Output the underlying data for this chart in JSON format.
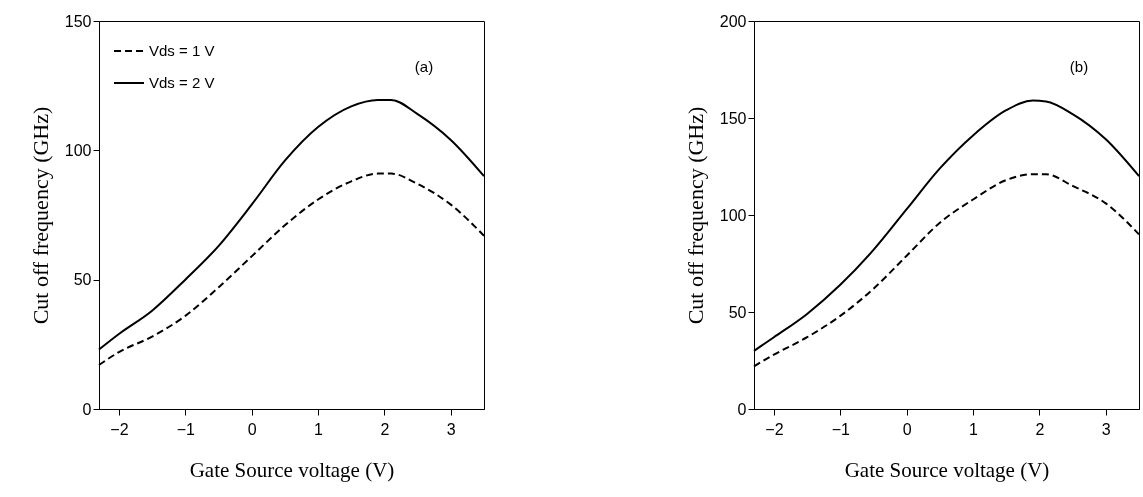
{
  "chart_data": [
    {
      "type": "line",
      "xlabel": "Gate Source voltage (V)",
      "ylabel": "Cut off frequency (GHz)",
      "annotations": [
        "(a)"
      ],
      "xlim": [
        -2.3,
        3.5
      ],
      "xticks": [
        -2,
        -1,
        0,
        1,
        2,
        3
      ],
      "ylim": [
        0,
        150
      ],
      "yticks": [
        0,
        50,
        100,
        150
      ],
      "grid": false,
      "legend": "top left",
      "marker": "none",
      "x": [
        -2.3,
        -2,
        -1.5,
        -1,
        -0.5,
        0,
        0.5,
        1,
        1.5,
        1.9,
        2.1,
        2.5,
        3,
        3.5
      ],
      "series": [
        {
          "name": "Vds = 1 V",
          "color": "#000000",
          "line_style": "dashed",
          "values": [
            17,
            22,
            28,
            36,
            47,
            59,
            71,
            81,
            88,
            91,
            91,
            87,
            79,
            67
          ]
        },
        {
          "name": "Vds = 2 V",
          "color": "#000000",
          "line_style": "solid",
          "values": [
            23,
            29,
            38,
            50,
            63,
            79,
            96,
            109,
            117,
            119.5,
            119.5,
            114,
            104,
            90
          ]
        }
      ]
    },
    {
      "type": "line",
      "xlabel": "Gate Source voltage (V)",
      "ylabel": "Cut off frequency (GHz)",
      "annotations": [
        "(b)"
      ],
      "xlim": [
        -2.3,
        3.5
      ],
      "xticks": [
        -2,
        -1,
        0,
        1,
        2,
        3
      ],
      "ylim": [
        0,
        200
      ],
      "yticks": [
        0,
        50,
        100,
        150,
        200
      ],
      "grid": false,
      "legend": "top left",
      "marker": "none",
      "x": [
        -2.3,
        -2,
        -1.5,
        -1,
        -0.5,
        0,
        0.5,
        1,
        1.5,
        1.9,
        2.1,
        2.5,
        3,
        3.5
      ],
      "series": [
        {
          "name": "Vds = 1 V",
          "color": "#000000",
          "line_style": "dashed",
          "values": [
            22,
            28,
            37,
            48,
            62,
            79,
            96,
            108,
            118,
            121,
            121,
            115,
            106,
            90
          ]
        },
        {
          "name": "Vds = 2 V",
          "color": "#000000",
          "line_style": "solid",
          "values": [
            30,
            37,
            49,
            64,
            82,
            103,
            124,
            141,
            154,
            159,
            158.5,
            152,
            139,
            120
          ]
        }
      ]
    }
  ]
}
